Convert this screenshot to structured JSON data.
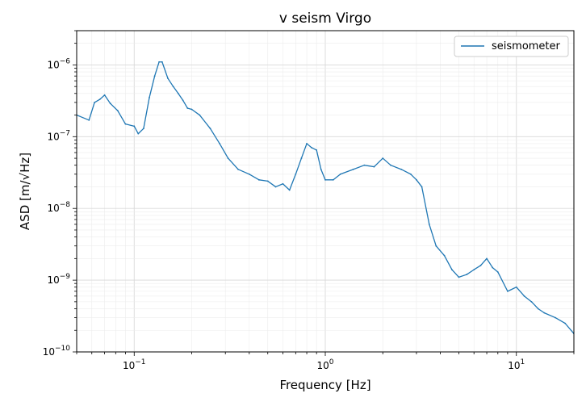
{
  "chart_data": {
    "type": "line",
    "title": "v seism Virgo",
    "xlabel": "Frequency [Hz]",
    "ylabel": "ASD [m/√Hz]",
    "xscale": "log",
    "yscale": "log",
    "xlim": [
      0.05,
      20
    ],
    "ylim": [
      1e-10,
      3e-06
    ],
    "grid": "major and minor",
    "legend": {
      "position": "top-right",
      "entries": [
        "seismometer"
      ]
    },
    "x_ticks": [
      {
        "value": 0.1,
        "base": "10",
        "exp": "−1"
      },
      {
        "value": 1,
        "base": "10",
        "exp": "0"
      },
      {
        "value": 10,
        "base": "10",
        "exp": "1"
      }
    ],
    "y_ticks": [
      {
        "value": 1e-10,
        "base": "10",
        "exp": "−10"
      },
      {
        "value": 1e-09,
        "base": "10",
        "exp": "−9"
      },
      {
        "value": 1e-08,
        "base": "10",
        "exp": "−8"
      },
      {
        "value": 1e-07,
        "base": "10",
        "exp": "−7"
      },
      {
        "value": 1e-06,
        "base": "10",
        "exp": "−6"
      }
    ],
    "series": [
      {
        "name": "seismometer",
        "color": "#1f77b4",
        "x": [
          0.05,
          0.058,
          0.062,
          0.066,
          0.07,
          0.075,
          0.082,
          0.09,
          0.1,
          0.105,
          0.112,
          0.12,
          0.128,
          0.135,
          0.14,
          0.15,
          0.16,
          0.17,
          0.18,
          0.19,
          0.2,
          0.22,
          0.25,
          0.28,
          0.31,
          0.35,
          0.4,
          0.45,
          0.5,
          0.55,
          0.6,
          0.65,
          0.7,
          0.75,
          0.8,
          0.85,
          0.9,
          0.95,
          1.0,
          1.1,
          1.2,
          1.4,
          1.6,
          1.8,
          2.0,
          2.2,
          2.5,
          2.8,
          3.0,
          3.2,
          3.5,
          3.8,
          4.2,
          4.6,
          5.0,
          5.5,
          6.0,
          6.5,
          7.0,
          7.5,
          8.0,
          9.0,
          10.0,
          11.0,
          12.0,
          13.0,
          14.0,
          16.0,
          18.0,
          20.0
        ],
        "y": [
          2e-07,
          1.7e-07,
          3e-07,
          3.3e-07,
          3.8e-07,
          2.9e-07,
          2.3e-07,
          1.5e-07,
          1.4e-07,
          1.1e-07,
          1.3e-07,
          3.5e-07,
          7e-07,
          1.1e-06,
          1.1e-06,
          6.5e-07,
          5e-07,
          4e-07,
          3.2e-07,
          2.5e-07,
          2.4e-07,
          2e-07,
          1.3e-07,
          8e-08,
          5e-08,
          3.5e-08,
          3e-08,
          2.5e-08,
          2.4e-08,
          2e-08,
          2.2e-08,
          1.8e-08,
          3e-08,
          5e-08,
          8e-08,
          7e-08,
          6.5e-08,
          3.5e-08,
          2.5e-08,
          2.5e-08,
          3e-08,
          3.5e-08,
          4e-08,
          3.8e-08,
          5e-08,
          4e-08,
          3.5e-08,
          3e-08,
          2.5e-08,
          2e-08,
          6e-09,
          3e-09,
          2.2e-09,
          1.4e-09,
          1.1e-09,
          1.2e-09,
          1.4e-09,
          1.6e-09,
          2e-09,
          1.5e-09,
          1.3e-09,
          7e-10,
          8e-10,
          6e-10,
          5e-10,
          4e-10,
          3.5e-10,
          3e-10,
          2.5e-10,
          1.8e-10
        ]
      }
    ]
  }
}
